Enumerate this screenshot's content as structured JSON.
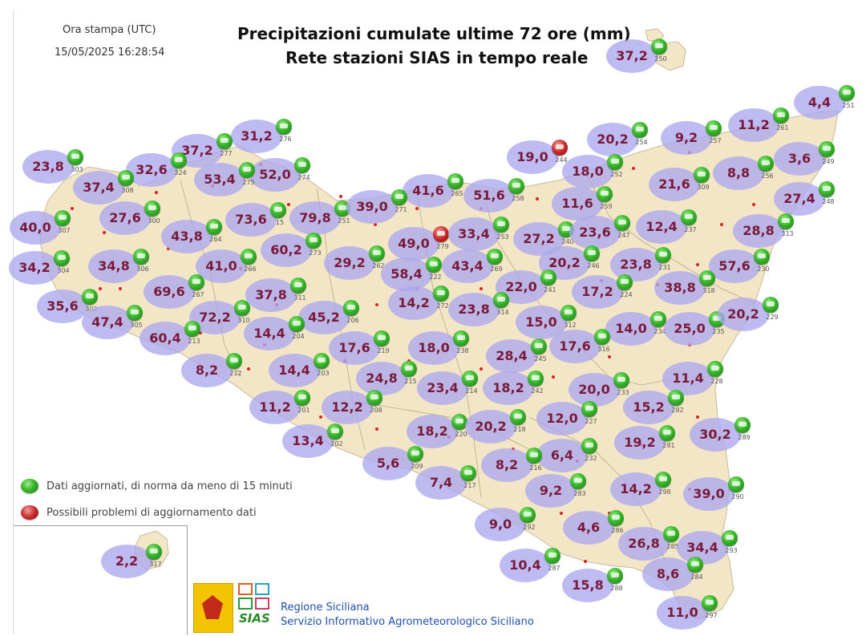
{
  "header": {
    "print_time_label": "Ora stampa (UTC)",
    "print_time_value": "15/05/2025 16:28:54",
    "title_line1": "Precipitazioni cumulate ultime 72 ore (mm)",
    "title_line2": "Rete stazioni SIAS in tempo reale"
  },
  "legend": {
    "ok_label": "Dati aggiornati, di norma da meno di 15 minuti",
    "problem_label": "Possibili problemi di aggiornamento dati"
  },
  "footer": {
    "org_line1": "Regione Siciliana",
    "org_line2": "Servizio Informativo Agrometeorologico Siciliano",
    "logo_text": "SIAS"
  },
  "colors": {
    "land": "#f3e6c6",
    "bubble": "#aaa8ee",
    "value_text": "#7a1a3a",
    "status_ok": "#38b52a",
    "status_problem": "#c92a2a"
  },
  "stations": [
    {
      "value": "37,2",
      "id": "250",
      "status": "ok"
    },
    {
      "value": "4,4",
      "id": "251",
      "status": "ok"
    },
    {
      "value": "11,2",
      "id": "261",
      "status": "ok"
    },
    {
      "value": "9,2",
      "id": "257",
      "status": "ok"
    },
    {
      "value": "20,2",
      "id": "254",
      "status": "ok"
    },
    {
      "value": "3,6",
      "id": "249",
      "status": "ok"
    },
    {
      "value": "8,8",
      "id": "256",
      "status": "ok"
    },
    {
      "value": "21,6",
      "id": "309",
      "status": "ok"
    },
    {
      "value": "27,4",
      "id": "248",
      "status": "ok"
    },
    {
      "value": "19,0",
      "id": "244",
      "status": "problem"
    },
    {
      "value": "18,0",
      "id": "252",
      "status": "ok"
    },
    {
      "value": "11,6",
      "id": "259",
      "status": "ok"
    },
    {
      "value": "12,4",
      "id": "237",
      "status": "ok"
    },
    {
      "value": "28,8",
      "id": "313",
      "status": "ok"
    },
    {
      "value": "31,2",
      "id": "276",
      "status": "ok"
    },
    {
      "value": "37,2",
      "id": "277",
      "status": "ok"
    },
    {
      "value": "23,8",
      "id": "303",
      "status": "ok"
    },
    {
      "value": "32,6",
      "id": "324",
      "status": "ok"
    },
    {
      "value": "52,0",
      "id": "274",
      "status": "ok"
    },
    {
      "value": "53,4",
      "id": "275",
      "status": "ok"
    },
    {
      "value": "37,4",
      "id": "308",
      "status": "ok"
    },
    {
      "value": "41,6",
      "id": "265",
      "status": "ok"
    },
    {
      "value": "51,6",
      "id": "258",
      "status": "ok"
    },
    {
      "value": "27,6",
      "id": "300",
      "status": "ok"
    },
    {
      "value": "40,0",
      "id": "307",
      "status": "ok"
    },
    {
      "value": "43,8",
      "id": "264",
      "status": "ok"
    },
    {
      "value": "73,6",
      "id": "15",
      "status": "ok"
    },
    {
      "value": "79,8",
      "id": "251",
      "status": "ok"
    },
    {
      "value": "39,0",
      "id": "271",
      "status": "ok"
    },
    {
      "value": "49,0",
      "id": "279",
      "status": "problem"
    },
    {
      "value": "33,4",
      "id": "253",
      "status": "ok"
    },
    {
      "value": "27,2",
      "id": "240",
      "status": "ok"
    },
    {
      "value": "23,6",
      "id": "247",
      "status": "ok"
    },
    {
      "value": "34,2",
      "id": "304",
      "status": "ok"
    },
    {
      "value": "34,8",
      "id": "306",
      "status": "ok"
    },
    {
      "value": "41,0",
      "id": "266",
      "status": "ok"
    },
    {
      "value": "60,2",
      "id": "273",
      "status": "ok"
    },
    {
      "value": "29,2",
      "id": "262",
      "status": "ok"
    },
    {
      "value": "58,4",
      "id": "222",
      "status": "ok"
    },
    {
      "value": "43,4",
      "id": "269",
      "status": "ok"
    },
    {
      "value": "20,2",
      "id": "246",
      "status": "ok"
    },
    {
      "value": "23,8",
      "id": "231",
      "status": "ok"
    },
    {
      "value": "57,6",
      "id": "230",
      "status": "ok"
    },
    {
      "value": "69,6",
      "id": "267",
      "status": "ok"
    },
    {
      "value": "37,8",
      "id": "311",
      "status": "ok"
    },
    {
      "value": "22,0",
      "id": "241",
      "status": "ok"
    },
    {
      "value": "17,2",
      "id": "224",
      "status": "ok"
    },
    {
      "value": "38,8",
      "id": "318",
      "status": "ok"
    },
    {
      "value": "35,6",
      "id": "302",
      "status": "ok"
    },
    {
      "value": "47,4",
      "id": "305",
      "status": "ok"
    },
    {
      "value": "72,2",
      "id": "310",
      "status": "ok"
    },
    {
      "value": "45,2",
      "id": "206",
      "status": "ok"
    },
    {
      "value": "14,2",
      "id": "272",
      "status": "ok"
    },
    {
      "value": "23,8",
      "id": "314",
      "status": "ok"
    },
    {
      "value": "15,0",
      "id": "312",
      "status": "ok"
    },
    {
      "value": "14,0",
      "id": "234",
      "status": "ok"
    },
    {
      "value": "25,0",
      "id": "235",
      "status": "ok"
    },
    {
      "value": "20,2",
      "id": "229",
      "status": "ok"
    },
    {
      "value": "60,4",
      "id": "213",
      "status": "ok"
    },
    {
      "value": "14,4",
      "id": "204",
      "status": "ok"
    },
    {
      "value": "17,6",
      "id": "219",
      "status": "ok"
    },
    {
      "value": "18,0",
      "id": "238",
      "status": "ok"
    },
    {
      "value": "28,4",
      "id": "245",
      "status": "ok"
    },
    {
      "value": "17,6",
      "id": "316",
      "status": "ok"
    },
    {
      "value": "8,2",
      "id": "212",
      "status": "ok"
    },
    {
      "value": "14,4",
      "id": "203",
      "status": "ok"
    },
    {
      "value": "24,8",
      "id": "215",
      "status": "ok"
    },
    {
      "value": "23,4",
      "id": "214",
      "status": "ok"
    },
    {
      "value": "18,2",
      "id": "242",
      "status": "ok"
    },
    {
      "value": "20,0",
      "id": "233",
      "status": "ok"
    },
    {
      "value": "11,4",
      "id": "228",
      "status": "ok"
    },
    {
      "value": "11,2",
      "id": "201",
      "status": "ok"
    },
    {
      "value": "12,2",
      "id": "208",
      "status": "ok"
    },
    {
      "value": "15,2",
      "id": "282",
      "status": "ok"
    },
    {
      "value": "12,0",
      "id": "227",
      "status": "ok"
    },
    {
      "value": "18,2",
      "id": "220",
      "status": "ok"
    },
    {
      "value": "20,2",
      "id": "218",
      "status": "ok"
    },
    {
      "value": "30,2",
      "id": "289",
      "status": "ok"
    },
    {
      "value": "19,2",
      "id": "281",
      "status": "ok"
    },
    {
      "value": "13,4",
      "id": "202",
      "status": "ok"
    },
    {
      "value": "6,4",
      "id": "232",
      "status": "ok"
    },
    {
      "value": "5,6",
      "id": "209",
      "status": "ok"
    },
    {
      "value": "8,2",
      "id": "216",
      "status": "ok"
    },
    {
      "value": "7,4",
      "id": "217",
      "status": "ok"
    },
    {
      "value": "9,2",
      "id": "283",
      "status": "ok"
    },
    {
      "value": "14,2",
      "id": "298",
      "status": "ok"
    },
    {
      "value": "39,0",
      "id": "290",
      "status": "ok"
    },
    {
      "value": "9,0",
      "id": "292",
      "status": "ok"
    },
    {
      "value": "4,6",
      "id": "286",
      "status": "ok"
    },
    {
      "value": "26,8",
      "id": "285",
      "status": "ok"
    },
    {
      "value": "34,4",
      "id": "293",
      "status": "ok"
    },
    {
      "value": "10,4",
      "id": "287",
      "status": "ok"
    },
    {
      "value": "15,8",
      "id": "288",
      "status": "ok"
    },
    {
      "value": "8,6",
      "id": "284",
      "status": "ok"
    },
    {
      "value": "11,0",
      "id": "297",
      "status": "ok"
    },
    {
      "value": "2,2",
      "id": "317",
      "status": "ok"
    }
  ]
}
